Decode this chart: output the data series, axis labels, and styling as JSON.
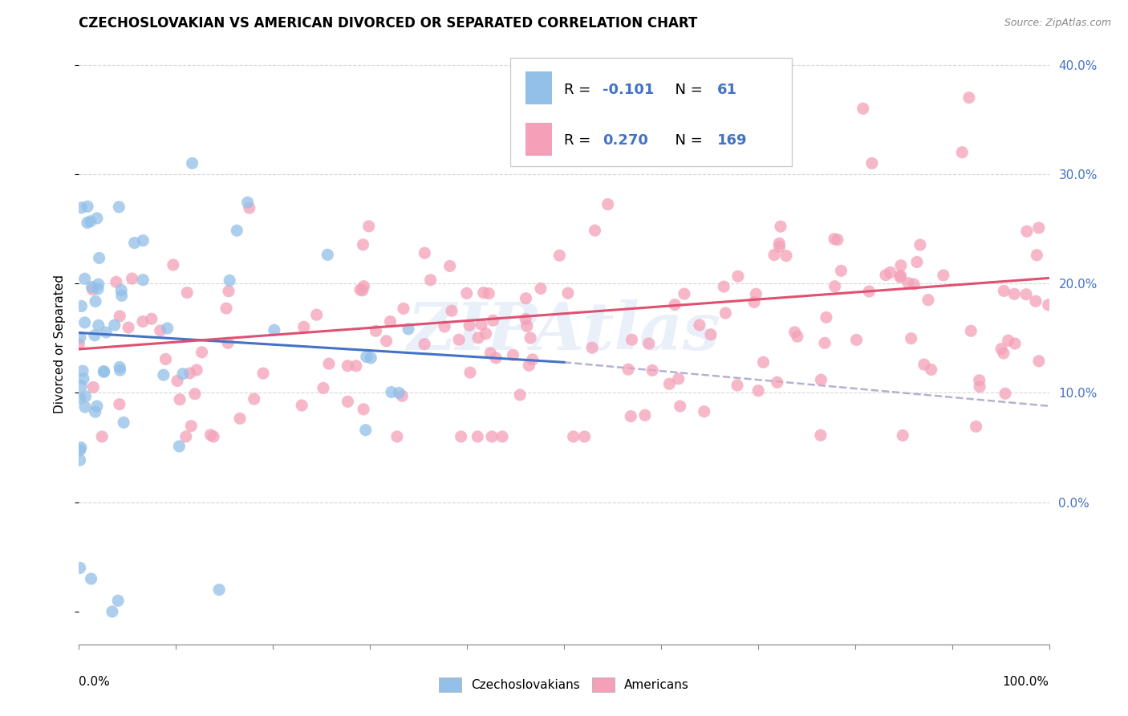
{
  "title": "CZECHOSLOVAKIAN VS AMERICAN DIVORCED OR SEPARATED CORRELATION CHART",
  "source": "Source: ZipAtlas.com",
  "ylabel": "Divorced or Separated",
  "legend_labels": [
    "Czechoslovakians",
    "Americans"
  ],
  "r_czech": -0.101,
  "n_czech": 61,
  "r_american": 0.27,
  "n_american": 169,
  "color_czech": "#92c0e8",
  "color_american": "#f4a0b8",
  "line_czech": "#4472c4",
  "line_american": "#e05070",
  "dashed_line_color": "#aaaacc",
  "watermark": "ZIPAtlas",
  "x_min": 0.0,
  "x_max": 1.0,
  "y_min": -0.13,
  "y_max": 0.42,
  "y_ticks": [
    0.0,
    0.1,
    0.2,
    0.3,
    0.4
  ],
  "title_fontsize": 12,
  "axis_label_fontsize": 11,
  "tick_fontsize": 10,
  "legend_fontsize": 13
}
